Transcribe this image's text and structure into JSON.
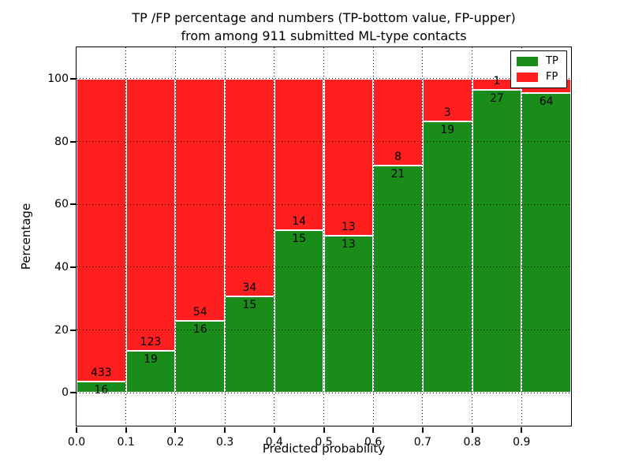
{
  "title": {
    "line1": "TP /FP percentage and numbers (TP-bottom value, FP-upper)",
    "line2": "from among 911 submitted ML-type contacts"
  },
  "axes": {
    "xlabel": "Predicted probability",
    "ylabel": "Percentage",
    "x_ticks": [
      "0.0",
      "0.1",
      "0.2",
      "0.3",
      "0.4",
      "0.5",
      "0.6",
      "0.7",
      "0.8",
      "0.9"
    ],
    "y_ticks": [
      "0",
      "20",
      "40",
      "60",
      "80",
      "100"
    ]
  },
  "legend": {
    "position": "upper right",
    "items": [
      {
        "label": "TP",
        "color": "#1a8c1a"
      },
      {
        "label": "FP",
        "color": "#ff1f1f"
      }
    ]
  },
  "colors": {
    "tp_green": "#1a8c1a",
    "fp_red": "#ff1f1f",
    "grid": "#000000",
    "background": "#ffffff"
  },
  "chart_data": {
    "type": "bar",
    "stacked": true,
    "normalized": "percent (each bin totals 100%)",
    "title": "TP /FP percentage and numbers (TP-bottom value, FP-upper) from among 911 submitted ML-type contacts",
    "xlabel": "Predicted probability",
    "ylabel": "Percentage",
    "bin_starts": [
      0.0,
      0.1,
      0.2,
      0.3,
      0.4,
      0.5,
      0.6,
      0.7,
      0.8,
      0.9
    ],
    "bin_width": 0.1,
    "xlim": [
      0.0,
      1.0
    ],
    "ylim": [
      -10.5,
      110
    ],
    "y_tick_values": [
      0,
      20,
      40,
      60,
      80,
      100
    ],
    "grid": true,
    "legend_position": "upper right",
    "series": [
      {
        "name": "TP",
        "color": "#1a8c1a",
        "counts": [
          16,
          19,
          16,
          15,
          15,
          13,
          21,
          19,
          27,
          64
        ]
      },
      {
        "name": "FP",
        "color": "#ff1f1f",
        "counts": [
          433,
          123,
          54,
          34,
          14,
          13,
          8,
          3,
          1,
          3
        ]
      }
    ],
    "tp_percent_heights": [
      3.6,
      13.4,
      22.9,
      30.6,
      51.7,
      50.0,
      72.4,
      86.4,
      96.4,
      95.5
    ],
    "visible_bar_labels": {
      "tp": [
        "16",
        "19",
        "16",
        "15",
        "15",
        "13",
        "21",
        "19",
        "27",
        "64"
      ],
      "fp": [
        "433",
        "123",
        "54",
        "34",
        "14",
        "13",
        "8",
        "3",
        "1",
        ""
      ]
    }
  }
}
